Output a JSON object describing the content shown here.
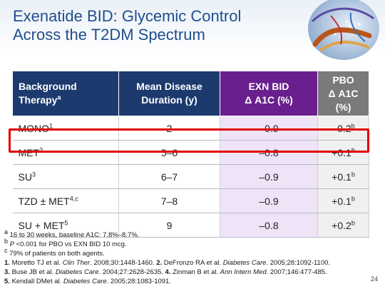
{
  "slide": {
    "title_line1": "Exenatide BID: Glycemic Control",
    "title_line2": "Across the T2DM Spectrum",
    "page_number": "24"
  },
  "table": {
    "headers": {
      "background_line1": "Background",
      "background_line2": "Therapy",
      "background_sup": "a",
      "duration_line1": "Mean Disease",
      "duration_line2": "Duration (y)",
      "exn_line1": "EXN BID",
      "exn_line2": "Δ A1C (%)",
      "pbo_line1": "PBO",
      "pbo_line2": "Δ A1C (%)"
    },
    "rows": [
      {
        "therapy": "MONO",
        "therapy_sup": "1",
        "duration": "2",
        "exn": "–0.9",
        "pbo": "–0.2",
        "pbo_sup": "b"
      },
      {
        "therapy": "MET",
        "therapy_sup": "2",
        "duration": "5–6",
        "exn": "–0.8",
        "pbo": "+0.1",
        "pbo_sup": "b"
      },
      {
        "therapy": "SU",
        "therapy_sup": "3",
        "duration": "6–7",
        "exn": "–0.9",
        "pbo": "+0.1",
        "pbo_sup": "b"
      },
      {
        "therapy": "TZD ± MET",
        "therapy_sup": "4,c",
        "duration": "7–8",
        "exn": "–0.9",
        "pbo": "+0.1",
        "pbo_sup": "b"
      },
      {
        "therapy": "SU + MET",
        "therapy_sup": "5",
        "duration": "9",
        "exn": "–0.8",
        "pbo": "+0.2",
        "pbo_sup": "b"
      }
    ],
    "highlighted_row": "MET"
  },
  "footnotes": {
    "a_mark": "a",
    "a_text": "16 to 30 weeks, baseline A1C: 7.8%–8.7%.",
    "b_mark": "b",
    "b_p": "P",
    "b_text": " <0.001 for PBO vs EXN BID 10 mcg.",
    "c_mark": "c",
    "c_text": "79% of patients on both agents."
  },
  "references": {
    "r1_num": "1.",
    "r1_auth": " Moretto TJ et al. ",
    "r1_journal": "Clin Ther",
    "r1_cite": ". 2008;30:1448-1460. ",
    "r2_num": "2.",
    "r2_auth": " DeFronzo RA et al. ",
    "r2_journal": "Diabetes Care",
    "r2_cite": ". 2005;28:1092-1100.",
    "r3_num": "3.",
    "r3_auth": " Buse JB et al. ",
    "r3_journal": "Diabetes Care",
    "r3_cite": ". 2004;27:2628-2635. ",
    "r4_num": "4.",
    "r4_auth": " Zinman B et al. ",
    "r4_journal": "Ann Intern Med",
    "r4_cite": ". 2007;146:477-485.",
    "r5_num": "5.",
    "r5_auth": " Kendall DMet al. ",
    "r5_journal": "Diabetes Care",
    "r5_cite": ". 2005;28:1083-1091."
  },
  "colors": {
    "title": "#1f4e8c",
    "header_dark_blue": "#1c3a6e",
    "header_purple": "#6a1f8e",
    "header_gray": "#7a7a7a",
    "exn_column_fill": "#efe3f7",
    "highlight_border": "#e10000"
  }
}
